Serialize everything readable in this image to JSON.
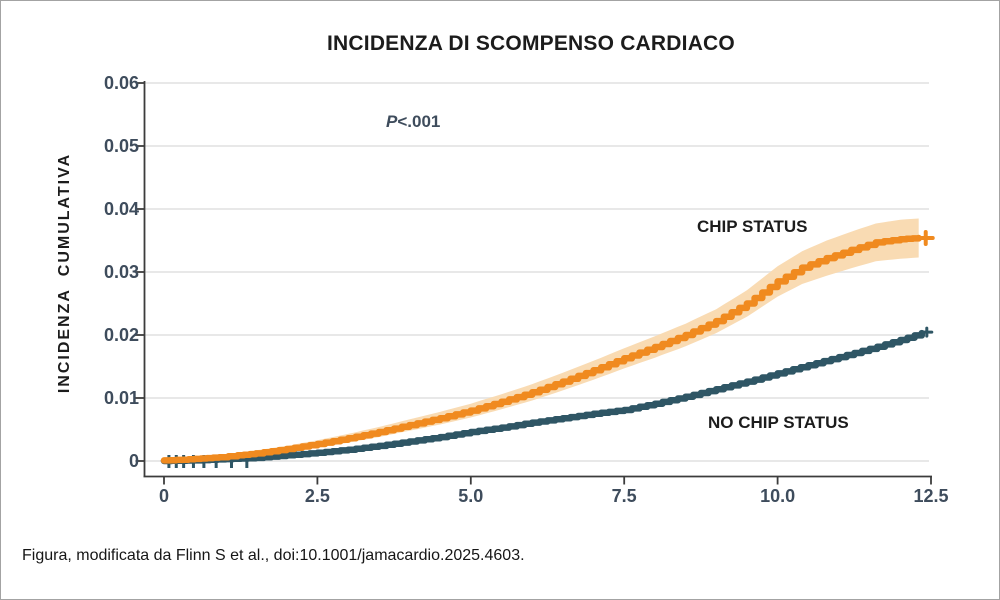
{
  "figure": {
    "title": "INCIDENZA DI SCOMPENSO CARDIACO",
    "caption": "Figura, modificata da Flinn S et al., doi:10.1001/jamacardio.2025.4603."
  },
  "chart_data": {
    "type": "line",
    "subtype": "cumulative-incidence-kaplan-meier",
    "title": "INCIDENZA DI SCOMPENSO CARDIACO",
    "xlabel": "",
    "ylabel": "INCIDENZA CUMULATIVA",
    "annotation": "P<.001",
    "xlim": [
      0,
      12.5
    ],
    "ylim": [
      0,
      0.06
    ],
    "grid": "horizontal",
    "legend_position": "inline-labels",
    "x_ticks": {
      "values": [
        0,
        2.5,
        5,
        7.5,
        10,
        12.5
      ],
      "labels": [
        "0",
        "2.5",
        "5.0",
        "7.5",
        "10.0",
        "12.5"
      ]
    },
    "y_ticks": {
      "values": [
        0,
        0.01,
        0.02,
        0.03,
        0.04,
        0.05,
        0.06
      ],
      "labels": [
        "0",
        "0.01",
        "0.02",
        "0.03",
        "0.04",
        "0.05",
        "0.06"
      ]
    },
    "colors": {
      "grid": "#e8e8e8",
      "axis": "#3c3c3c",
      "tick_label": "#3e4c5c"
    },
    "series": [
      {
        "name": "CHIP STATUS",
        "color": "#F08A1F",
        "band_color": "#F9DBB3",
        "end_marker": "plus",
        "x": [
          0,
          0.3,
          0.6,
          0.9,
          1.2,
          1.5,
          2.0,
          2.5,
          3.0,
          3.5,
          4.0,
          4.5,
          5.0,
          5.5,
          6.0,
          6.5,
          7.0,
          7.5,
          8.0,
          8.5,
          9.0,
          9.5,
          10.0,
          10.4,
          10.8,
          11.2,
          11.6,
          12.0,
          12.3
        ],
        "y": [
          0.0001,
          0.0002,
          0.0004,
          0.0006,
          0.0009,
          0.0012,
          0.0019,
          0.0027,
          0.0036,
          0.0046,
          0.0057,
          0.0068,
          0.008,
          0.0094,
          0.0109,
          0.0126,
          0.0144,
          0.0163,
          0.0181,
          0.02,
          0.0222,
          0.025,
          0.0285,
          0.0307,
          0.0322,
          0.0335,
          0.0347,
          0.0352,
          0.0354
        ],
        "band_halfwidth": [
          0.0002,
          0.0003,
          0.0003,
          0.0004,
          0.0004,
          0.0005,
          0.0005,
          0.0006,
          0.0007,
          0.0008,
          0.0009,
          0.001,
          0.0011,
          0.0012,
          0.0013,
          0.0014,
          0.0015,
          0.0016,
          0.0017,
          0.0018,
          0.0019,
          0.0021,
          0.0024,
          0.0026,
          0.0028,
          0.0029,
          0.003,
          0.0031,
          0.0031
        ]
      },
      {
        "name": "NO CHIP STATUS",
        "color": "#2F5665",
        "end_marker": "plus",
        "censor_ticks_x": [
          0.08,
          0.2,
          0.32,
          0.48,
          0.65,
          0.85,
          1.1,
          1.35
        ],
        "x": [
          0,
          0.5,
          1.0,
          1.5,
          2.0,
          2.5,
          3.0,
          3.5,
          4.0,
          4.5,
          5.0,
          5.5,
          6.0,
          6.5,
          7.0,
          7.5,
          8.0,
          8.5,
          9.0,
          9.5,
          10.0,
          10.5,
          11.0,
          11.5,
          12.0,
          12.35
        ],
        "y": [
          0.0,
          0.0001,
          0.0003,
          0.0005,
          0.0009,
          0.0013,
          0.0018,
          0.0024,
          0.0031,
          0.0038,
          0.0046,
          0.0053,
          0.0061,
          0.0068,
          0.0075,
          0.0081,
          0.0091,
          0.0102,
          0.0114,
          0.0126,
          0.0139,
          0.0152,
          0.0165,
          0.0178,
          0.0192,
          0.0203
        ]
      }
    ]
  }
}
